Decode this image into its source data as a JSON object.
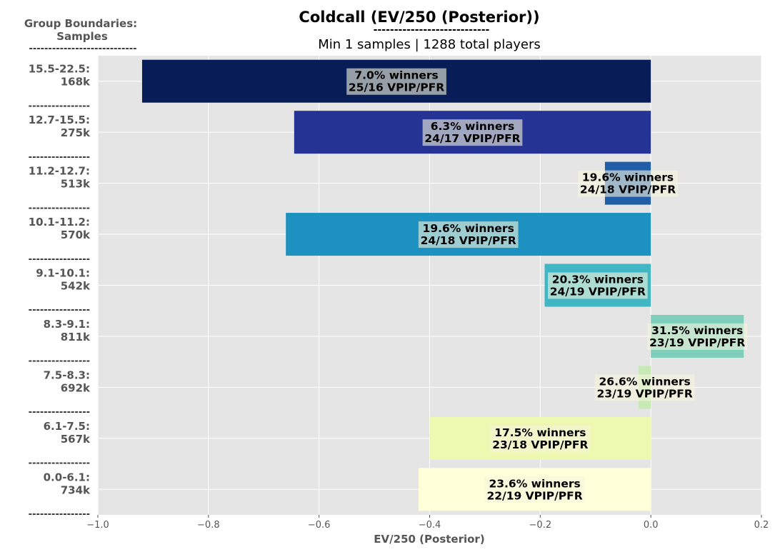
{
  "chart_data": {
    "type": "bar",
    "orientation": "horizontal",
    "title": "Coldcall (EV/250 (Posterior))",
    "title_underline": "----------------------------",
    "subtitle": "Min 1 samples | 1288 total players",
    "side_header": [
      "Group Boundaries:",
      "Samples"
    ],
    "side_header_underline": "----------------------------",
    "separator": "----------------",
    "xlabel": "EV/250 (Posterior)",
    "xlim": [
      -1.0,
      0.2
    ],
    "xticks": [
      -1.0,
      -0.8,
      -0.6,
      -0.4,
      -0.2,
      0.0,
      0.2
    ],
    "xtick_labels": [
      "−1.0",
      "−0.8",
      "−0.6",
      "−0.4",
      "−0.2",
      "0.0",
      "0.2"
    ],
    "grid": true,
    "categories": [
      {
        "range": "15.5-22.5:",
        "samples": "168k",
        "value": -0.92,
        "color": "#081d58",
        "winners": "7.0% winners",
        "vpip_pfr": "25/16 VPIP/PFR"
      },
      {
        "range": "12.7-15.5:",
        "samples": "275k",
        "value": -0.645,
        "color": "#253494",
        "winners": "6.3% winners",
        "vpip_pfr": "24/17 VPIP/PFR"
      },
      {
        "range": "11.2-12.7:",
        "samples": "513k",
        "value": -0.083,
        "color": "#225ea8",
        "winners": "19.6% winners",
        "vpip_pfr": "24/18 VPIP/PFR"
      },
      {
        "range": "10.1-11.2:",
        "samples": "570k",
        "value": -0.66,
        "color": "#1d91c0",
        "winners": "19.6% winners",
        "vpip_pfr": "24/18 VPIP/PFR"
      },
      {
        "range": "9.1-10.1:",
        "samples": "542k",
        "value": -0.192,
        "color": "#41b6c4",
        "winners": "20.3% winners",
        "vpip_pfr": "24/19 VPIP/PFR"
      },
      {
        "range": "8.3-9.1:",
        "samples": "811k",
        "value": 0.168,
        "color": "#7fcdbb",
        "winners": "31.5% winners",
        "vpip_pfr": "23/19 VPIP/PFR"
      },
      {
        "range": "7.5-8.3:",
        "samples": "692k",
        "value": -0.022,
        "color": "#c7e9b4",
        "winners": "26.6% winners",
        "vpip_pfr": "23/19 VPIP/PFR"
      },
      {
        "range": "6.1-7.5:",
        "samples": "567k",
        "value": -0.4,
        "color": "#edf8b1",
        "winners": "17.5% winners",
        "vpip_pfr": "23/18 VPIP/PFR"
      },
      {
        "range": "0.0-6.1:",
        "samples": "734k",
        "value": -0.42,
        "color": "#ffffd9",
        "winners": "23.6% winners",
        "vpip_pfr": "22/19 VPIP/PFR"
      }
    ]
  }
}
